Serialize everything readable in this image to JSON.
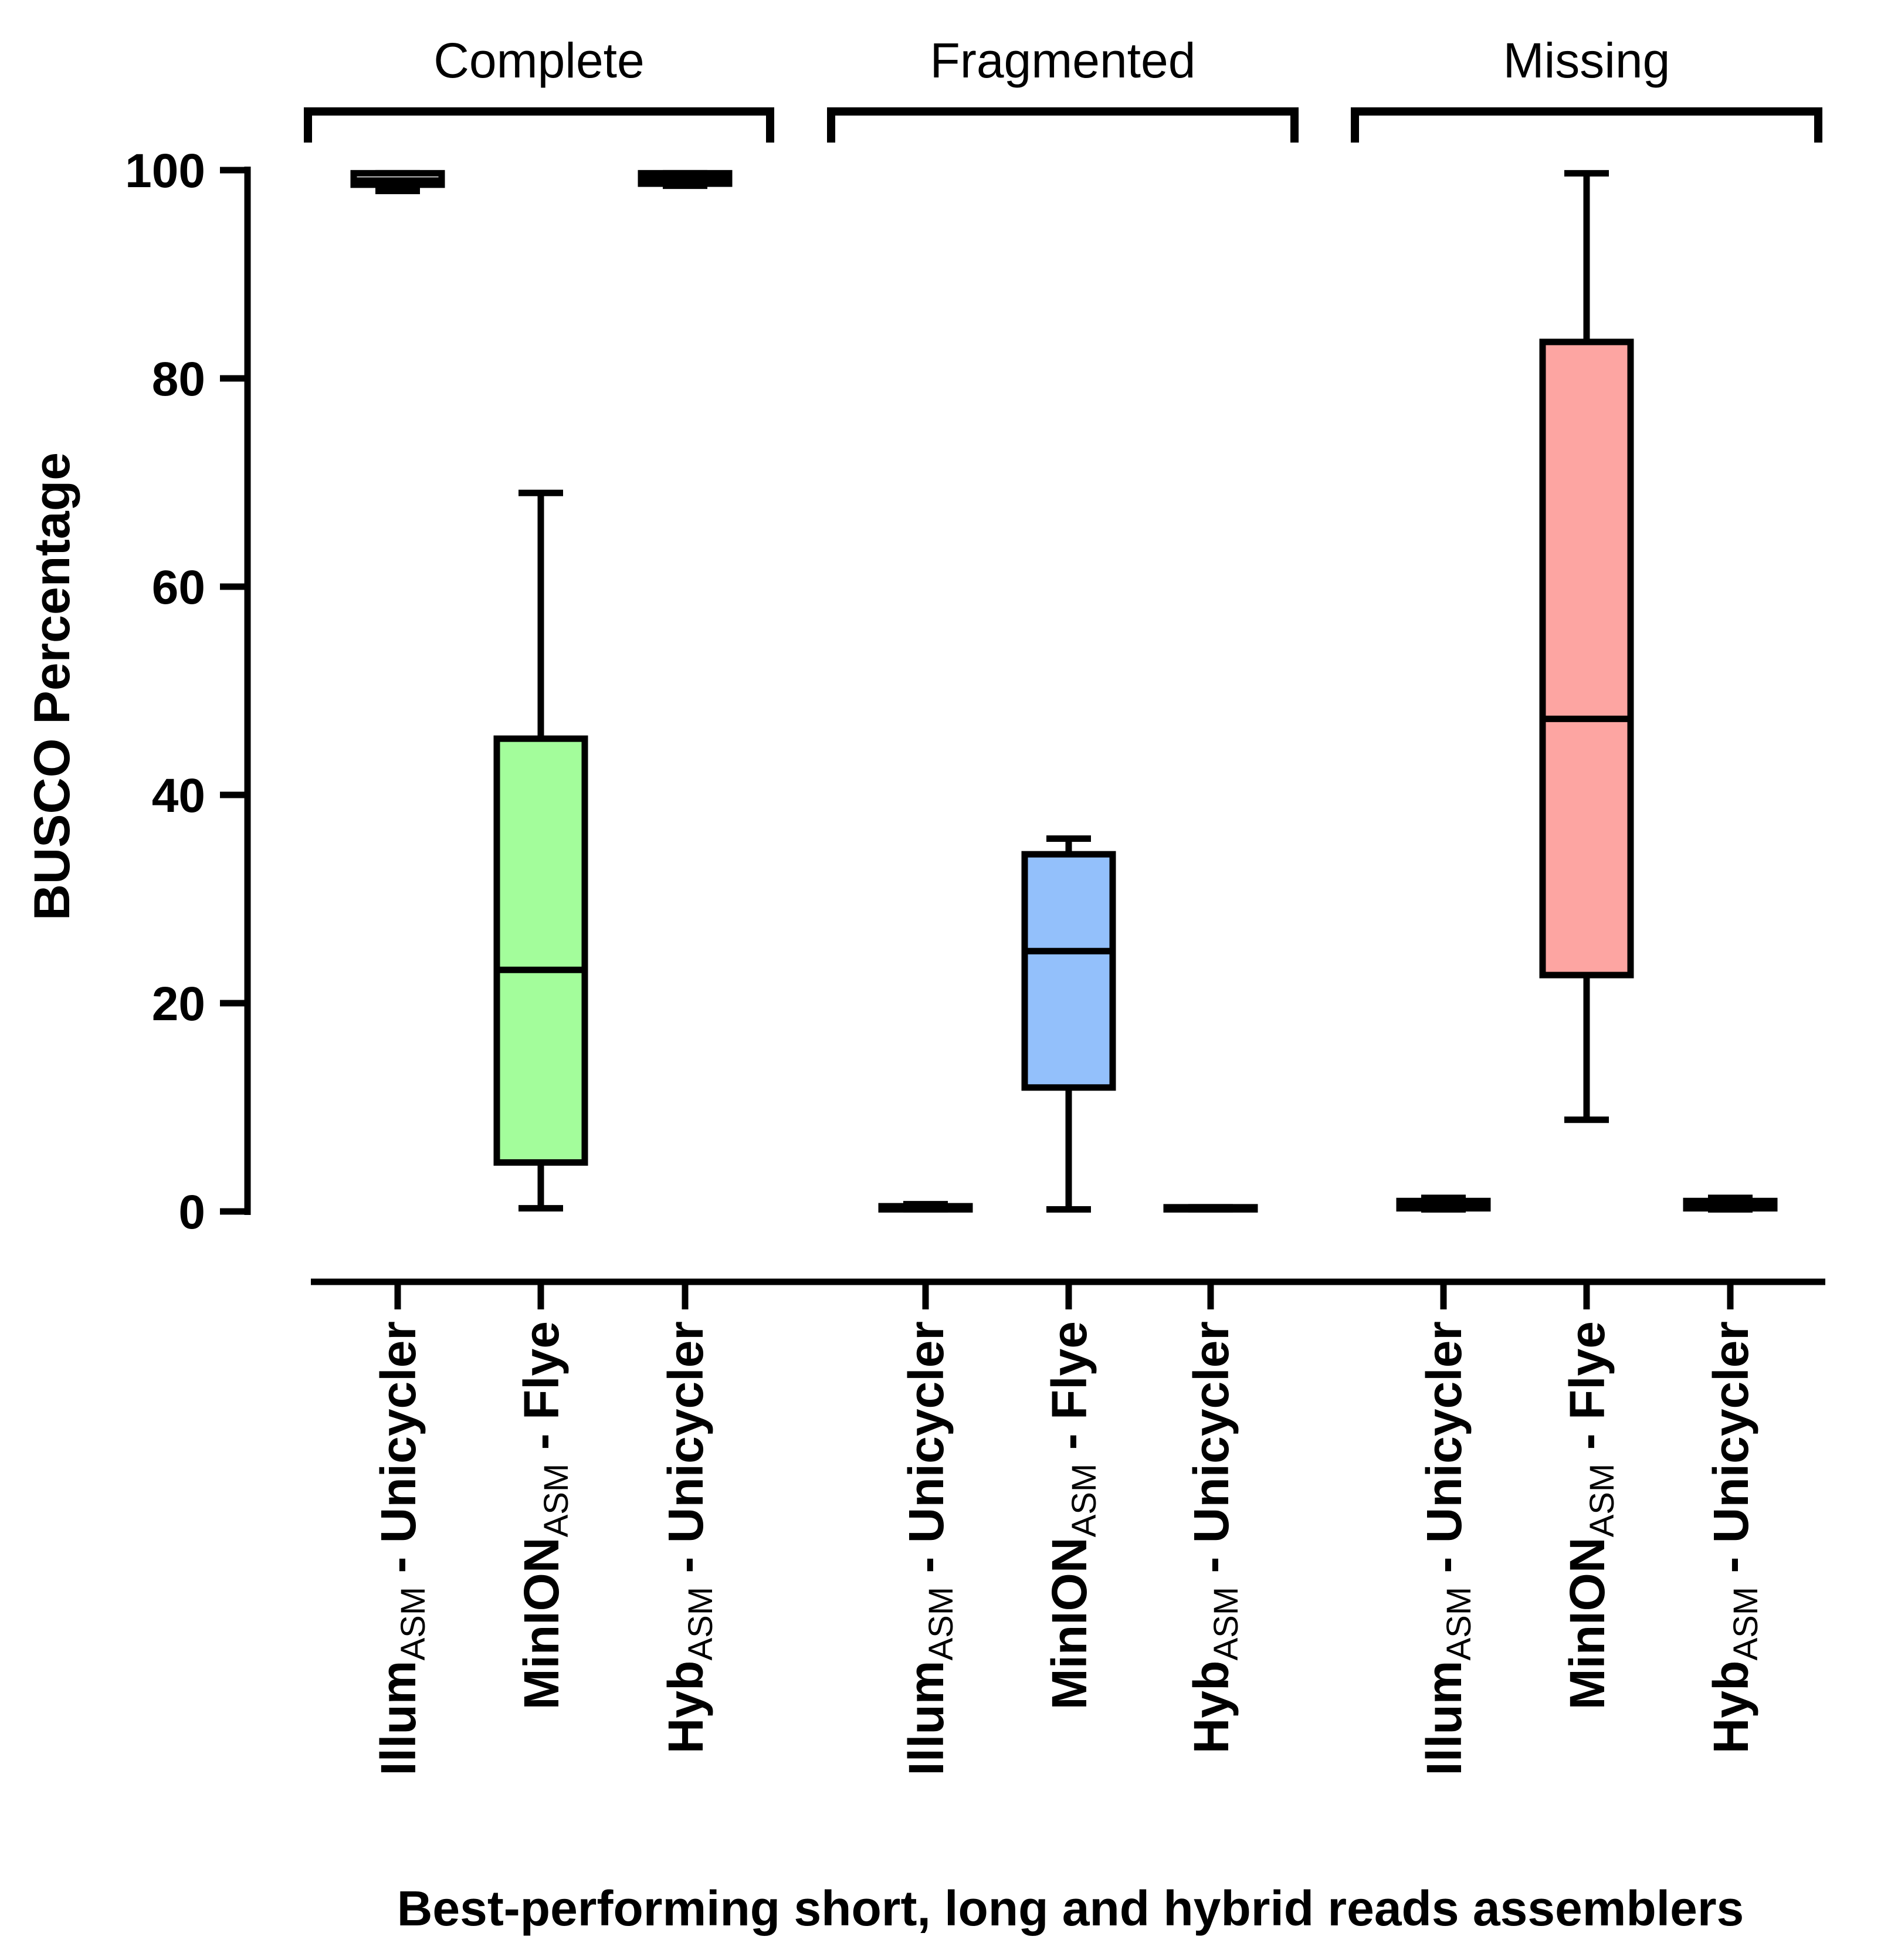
{
  "chart_data": {
    "type": "box",
    "title": "",
    "xlabel": "Best-performing short, long and hybrid reads assemblers",
    "ylabel": "BUSCO Percentage",
    "ylim": [
      0,
      100
    ],
    "yticks": [
      0,
      20,
      40,
      60,
      80,
      100
    ],
    "grid": false,
    "legend": "none",
    "groups": [
      {
        "name": "Complete",
        "assemblers": [
          {
            "base": "Illum",
            "sub": "ASM",
            "rest": " - Unicycler",
            "min": 98.0,
            "q1": 98.6,
            "median": 99.0,
            "q3": 99.7,
            "max": 99.7,
            "color": "#ffffff"
          },
          {
            "base": "MinION",
            "sub": "ASM",
            "rest": " - Flye",
            "min": 0.3,
            "q1": 4.7,
            "median": 23.2,
            "q3": 45.4,
            "max": 69.0,
            "color": "#a3fd9b"
          },
          {
            "base": "Hyb",
            "sub": "ASM",
            "rest": " - Unicycler",
            "min": 98.5,
            "q1": 98.7,
            "median": 99.1,
            "q3": 99.7,
            "max": 99.7,
            "color": "#ffffff"
          }
        ]
      },
      {
        "name": "Fragmented",
        "assemblers": [
          {
            "base": "Illum",
            "sub": "ASM",
            "rest": " - Unicycler",
            "min": 0.2,
            "q1": 0.2,
            "median": 0.3,
            "q3": 0.5,
            "max": 0.7,
            "color": "#ffffff"
          },
          {
            "base": "MinION",
            "sub": "ASM",
            "rest": " - Flye",
            "min": 0.2,
            "q1": 11.9,
            "median": 25.0,
            "q3": 34.3,
            "max": 35.8,
            "color": "#93c0fb"
          },
          {
            "base": "Hyb",
            "sub": "ASM",
            "rest": " - Unicycler",
            "min": 0.2,
            "q1": 0.2,
            "median": 0.3,
            "q3": 0.4,
            "max": 0.4,
            "color": "#ffffff"
          }
        ]
      },
      {
        "name": "Missing",
        "assemblers": [
          {
            "base": "Illum",
            "sub": "ASM",
            "rest": " - Unicycler",
            "min": 0.2,
            "q1": 0.3,
            "median": 0.7,
            "q3": 1.0,
            "max": 1.3,
            "color": "#ffffff"
          },
          {
            "base": "MinION",
            "sub": "ASM",
            "rest": " - Flye",
            "min": 8.8,
            "q1": 22.7,
            "median": 47.3,
            "q3": 83.5,
            "max": 99.7,
            "color": "#fda5a2"
          },
          {
            "base": "Hyb",
            "sub": "ASM",
            "rest": " - Unicycler",
            "min": 0.2,
            "q1": 0.3,
            "median": 0.7,
            "q3": 1.0,
            "max": 1.3,
            "color": "#ffffff"
          }
        ]
      }
    ]
  }
}
